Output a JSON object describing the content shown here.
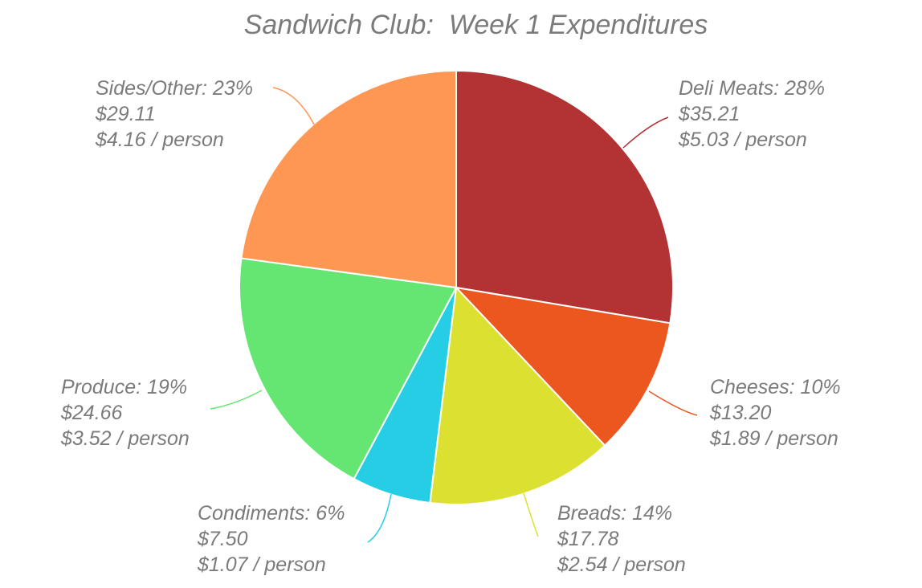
{
  "chart_data": {
    "type": "pie",
    "title": "Sandwich Club:  Week 1 Expenditures",
    "slices": [
      {
        "label": "Deli Meats",
        "percent_label": "28%",
        "amount": "$35.21",
        "per_person": "$5.03 / person",
        "value": 35.21,
        "color": "#b33234"
      },
      {
        "label": "Cheeses",
        "percent_label": "10%",
        "amount": "$13.20",
        "per_person": "$1.89 / person",
        "value": 13.2,
        "color": "#ec561f"
      },
      {
        "label": "Breads",
        "percent_label": "14%",
        "amount": "$17.78",
        "per_person": "$2.54 / person",
        "value": 17.78,
        "color": "#dce031"
      },
      {
        "label": "Condiments",
        "percent_label": "6%",
        "amount": "$7.50",
        "per_person": "$1.07 / person",
        "value": 7.5,
        "color": "#26cee5"
      },
      {
        "label": "Produce",
        "percent_label": "19%",
        "amount": "$24.66",
        "per_person": "$3.52 / person",
        "value": 24.66,
        "color": "#65e672"
      },
      {
        "label": "Sides/Other",
        "percent_label": "23%",
        "amount": "$29.11",
        "per_person": "$4.16 / person",
        "value": 29.11,
        "color": "#fe9654"
      }
    ],
    "start_angle": "12 o'clock",
    "direction": "clockwise",
    "legend": "none"
  }
}
